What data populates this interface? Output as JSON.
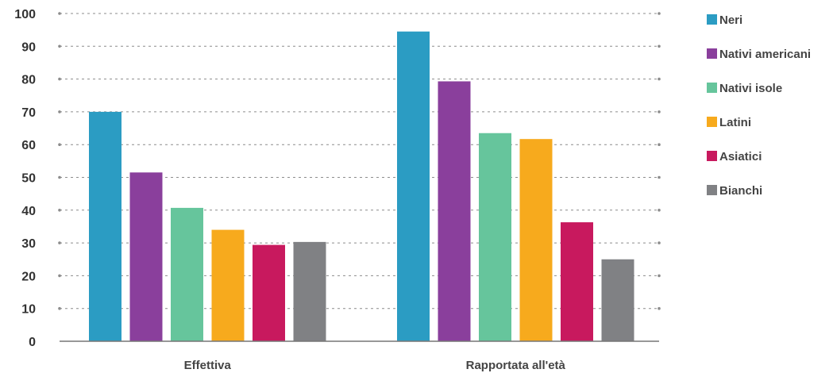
{
  "chart_data": {
    "type": "bar",
    "categories": [
      "Effettiva",
      "Rapportata all'età"
    ],
    "series": [
      {
        "name": "Neri",
        "color": "#2b9cc3",
        "values": [
          70,
          94.5
        ]
      },
      {
        "name": "Nativi americani",
        "color": "#8a3f9c",
        "values": [
          51.5,
          79.3
        ]
      },
      {
        "name": "Nativi isole",
        "color": "#66c59c",
        "values": [
          40.7,
          63.5
        ]
      },
      {
        "name": "Latini",
        "color": "#f7aa1d",
        "values": [
          34,
          61.7
        ]
      },
      {
        "name": "Asiatici",
        "color": "#c8195e",
        "values": [
          29.4,
          36.3
        ]
      },
      {
        "name": "Bianchi",
        "color": "#808184",
        "values": [
          30.3,
          25
        ]
      }
    ],
    "yticks": [
      0,
      10,
      20,
      30,
      40,
      50,
      60,
      70,
      80,
      90,
      100
    ],
    "ylim": [
      0,
      100
    ],
    "grid": true,
    "legend_position": "right"
  }
}
